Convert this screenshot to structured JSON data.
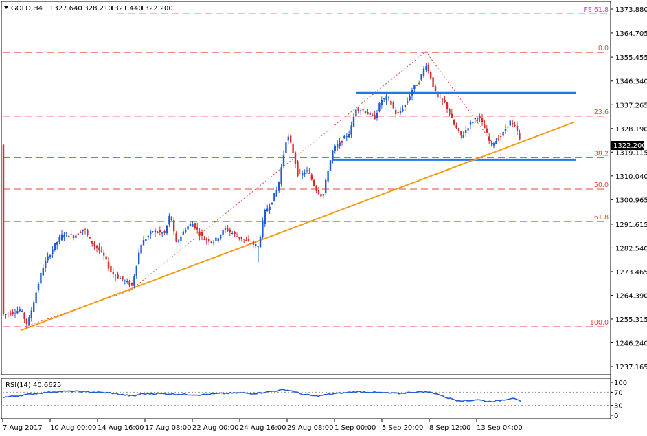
{
  "header": {
    "symbol": "GOLD,H4",
    "open": "1327.640",
    "high": "1328.210",
    "low": "1321.440",
    "close": "1322.200"
  },
  "price_axis": {
    "labels": [
      "1373.880",
      "1364.705",
      "1355.455",
      "1346.340",
      "1337.265",
      "1328.190",
      "1319.115",
      "1310.040",
      "1300.965",
      "1291.615",
      "1282.540",
      "1273.465",
      "1264.390",
      "1255.315",
      "1246.240",
      "1237.165"
    ],
    "current_price": "1322.200",
    "current_price_value": 1322.2
  },
  "time_axis": {
    "labels": [
      "7 Aug 2017",
      "10 Aug 00:00",
      "14 Aug 16:00",
      "17 Aug 08:00",
      "22 Aug 00:00",
      "24 Aug 16:00",
      "29 Aug 08:00",
      "1 Sep 00:00",
      "5 Sep 20:00",
      "8 Sep 12:00",
      "13 Sep 04:00"
    ]
  },
  "fib_levels": [
    {
      "label": "0.0",
      "price": 1357.3
    },
    {
      "label": "23.6",
      "price": 1332.9
    },
    {
      "label": "38.2",
      "price": 1317.0
    },
    {
      "label": "50.0",
      "price": 1305.0
    },
    {
      "label": "61.8",
      "price": 1292.6
    },
    {
      "label": "100.0",
      "price": 1252.4
    }
  ],
  "fe_level": {
    "label": "FE 61.8",
    "price": 1372.0
  },
  "horizontal_lines": [
    {
      "name": "resistance",
      "price": 1341.8,
      "color": "#1e78e6"
    },
    {
      "name": "support",
      "price": 1316.2,
      "color": "#1e78e6"
    }
  ],
  "trendline": {
    "color": "#f39c1a"
  },
  "rsi": {
    "label": "RSI(14) 40.6625",
    "axis_labels": [
      "100",
      "70",
      "30",
      "0"
    ],
    "levels": [
      70,
      30
    ],
    "line_color": "#1e5bd6"
  },
  "colors": {
    "bull": "#1e5bd6",
    "bear": "#d72b2b",
    "fib": "#e8463a",
    "fe": "#d23fd2"
  }
}
